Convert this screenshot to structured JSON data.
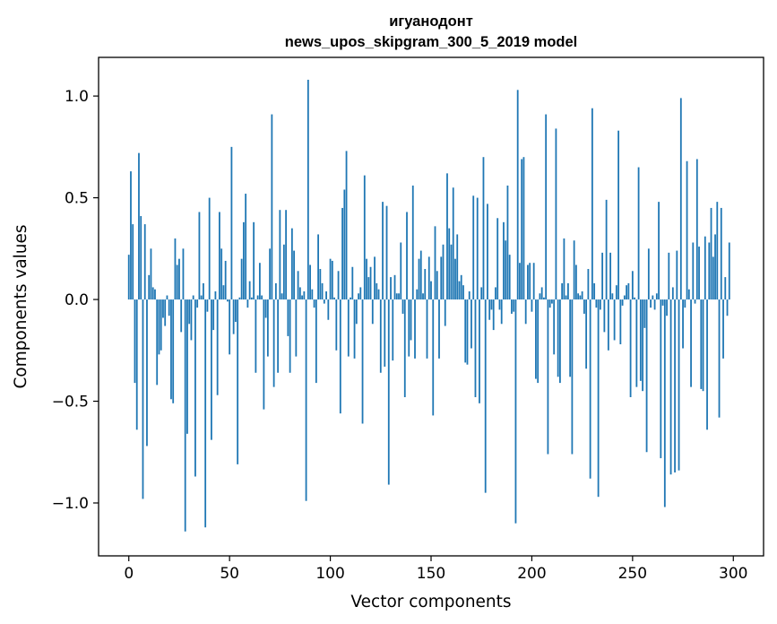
{
  "chart_data": {
    "type": "bar",
    "title": "игуанодонт",
    "subtitle": "news_upos_skipgram_300_5_2019 model",
    "xlabel": "Vector components",
    "ylabel": "Components values",
    "xlim": [
      -15,
      315
    ],
    "ylim": [
      -1.26,
      1.19
    ],
    "xticks": [
      0,
      50,
      100,
      150,
      200,
      250,
      300
    ],
    "xtick_labels": [
      "0",
      "50",
      "100",
      "150",
      "200",
      "250",
      "300"
    ],
    "yticks": [
      -1.0,
      -0.5,
      0.0,
      0.5,
      1.0
    ],
    "ytick_labels": [
      "−1.0",
      "−0.5",
      "0.0",
      "0.5",
      "1.0"
    ],
    "grid": false,
    "bar_color": "#1f77b4",
    "values": [
      0.22,
      0.63,
      0.37,
      -0.41,
      -0.64,
      0.72,
      0.41,
      -0.98,
      0.37,
      -0.72,
      0.12,
      0.25,
      0.06,
      0.05,
      -0.42,
      -0.27,
      -0.25,
      -0.09,
      -0.13,
      0.02,
      -0.08,
      -0.49,
      -0.51,
      0.3,
      0.17,
      0.2,
      -0.16,
      0.25,
      -1.14,
      -0.66,
      -0.12,
      -0.2,
      0.02,
      -0.87,
      -0.04,
      0.43,
      0.02,
      0.08,
      -1.12,
      -0.06,
      0.5,
      -0.69,
      -0.15,
      0.04,
      -0.47,
      0.43,
      0.25,
      0.07,
      0.19,
      -0.01,
      -0.27,
      0.75,
      -0.17,
      -0.11,
      -0.81,
      0.01,
      0.2,
      0.38,
      0.52,
      -0.04,
      0.09,
      0.01,
      0.38,
      -0.36,
      0.02,
      0.18,
      0.02,
      -0.54,
      -0.09,
      -0.28,
      0.25,
      0.91,
      -0.43,
      0.08,
      -0.36,
      0.44,
      0.03,
      0.27,
      0.44,
      -0.18,
      -0.36,
      0.35,
      0.24,
      -0.28,
      0.14,
      0.06,
      0.02,
      0.04,
      -0.99,
      1.08,
      0.17,
      0.05,
      -0.04,
      -0.41,
      0.32,
      0.15,
      0.08,
      -0.02,
      0.04,
      -0.1,
      0.2,
      0.19,
      0.01,
      -0.25,
      0.14,
      -0.56,
      0.45,
      0.54,
      0.73,
      -0.28,
      0.01,
      0.16,
      -0.29,
      -0.12,
      0.03,
      0.06,
      -0.61,
      0.61,
      0.2,
      0.11,
      0.16,
      -0.12,
      0.21,
      0.08,
      0.05,
      -0.36,
      0.48,
      -0.33,
      0.46,
      -0.91,
      0.11,
      -0.3,
      0.12,
      0.03,
      0.03,
      0.28,
      -0.07,
      -0.48,
      0.43,
      -0.28,
      -0.2,
      0.56,
      -0.29,
      0.05,
      0.2,
      0.24,
      0.03,
      0.15,
      -0.29,
      0.21,
      0.09,
      -0.57,
      0.36,
      0.14,
      -0.29,
      0.21,
      0.27,
      -0.13,
      0.62,
      0.35,
      0.27,
      0.55,
      0.2,
      0.32,
      0.09,
      0.12,
      0.07,
      -0.31,
      -0.32,
      0.04,
      -0.24,
      0.51,
      -0.48,
      0.5,
      -0.51,
      0.06,
      0.7,
      -0.95,
      0.47,
      -0.1,
      -0.05,
      -0.15,
      0.06,
      0.4,
      -0.05,
      -0.12,
      0.38,
      0.29,
      0.56,
      0.22,
      -0.07,
      -0.06,
      -1.1,
      1.03,
      0.18,
      0.69,
      0.7,
      -0.12,
      0.17,
      0.18,
      -0.06,
      0.18,
      -0.39,
      -0.41,
      0.03,
      0.06,
      0.01,
      0.91,
      -0.76,
      -0.04,
      -0.02,
      -0.27,
      0.84,
      -0.38,
      -0.41,
      0.08,
      0.3,
      0.02,
      0.08,
      -0.38,
      -0.76,
      0.29,
      0.17,
      0.03,
      0.02,
      0.04,
      -0.07,
      -0.34,
      0.15,
      -0.88,
      0.94,
      0.08,
      -0.04,
      -0.97,
      -0.05,
      0.23,
      -0.16,
      0.49,
      -0.25,
      0.23,
      0.03,
      -0.2,
      0.07,
      0.83,
      -0.22,
      -0.03,
      0.02,
      0.07,
      0.08,
      -0.48,
      0.14,
      0.01,
      -0.43,
      0.65,
      -0.4,
      -0.45,
      -0.14,
      -0.75,
      0.25,
      -0.04,
      0.02,
      -0.05,
      0.03,
      0.48,
      -0.78,
      -0.03,
      -1.02,
      -0.08,
      0.23,
      -0.86,
      0.06,
      -0.85,
      0.24,
      -0.84,
      0.99,
      -0.24,
      -0.04,
      0.68,
      0.05,
      -0.43,
      0.28,
      -0.02,
      0.69,
      0.26,
      -0.44,
      -0.45,
      0.31,
      -0.64,
      0.28,
      0.45,
      0.21,
      0.32,
      0.48,
      -0.58,
      0.45,
      -0.29,
      0.11,
      -0.08,
      0.28
    ]
  }
}
